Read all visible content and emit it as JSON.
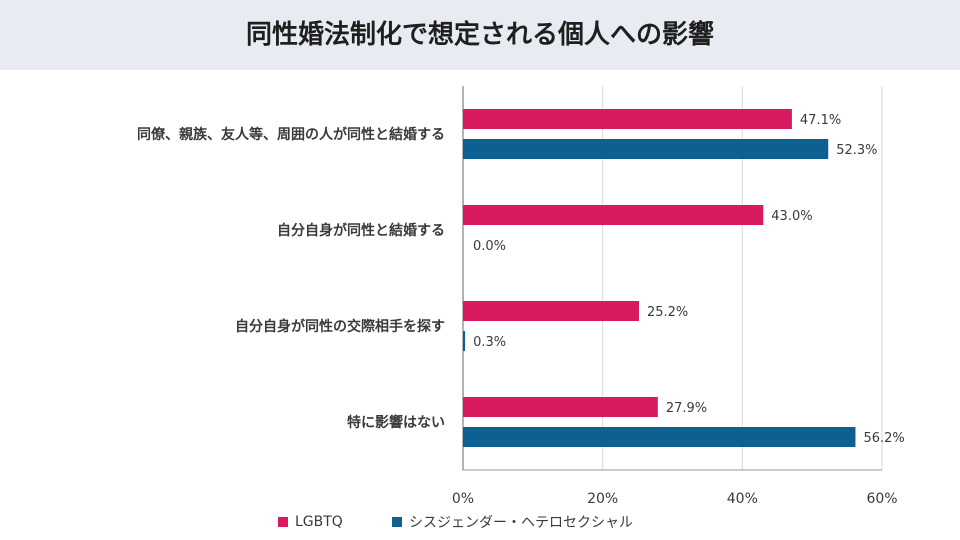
{
  "title": "同性婚法制化で想定される個人への影響",
  "colors": {
    "header_bg": "#e8ebf2",
    "lgbtq": "#d81b60",
    "cis": "#0d6090",
    "axis": "#9a9a9a"
  },
  "chart_data": {
    "type": "bar",
    "orientation": "horizontal",
    "categories": [
      "同僚、親族、友人等、周囲の人が同性と結婚する",
      "自分自身が同性と結婚する",
      "自分自身が同性の交際相手を探す",
      "特に影響はない"
    ],
    "series": [
      {
        "name": "LGBTQ",
        "values": [
          47.1,
          43.0,
          25.2,
          27.9
        ],
        "labels": [
          "47.1%",
          "43.0%",
          "25.2%",
          "27.9%"
        ]
      },
      {
        "name": "シスジェンダー・ヘテロセクシャル",
        "values": [
          52.3,
          0.0,
          0.3,
          56.2
        ],
        "labels": [
          "52.3%",
          "0.0%",
          "0.3%",
          "56.2%"
        ]
      }
    ],
    "xlim": [
      0,
      60
    ],
    "xticks": [
      "0%",
      "20%",
      "40%",
      "60%"
    ],
    "grid": true,
    "legend_position": "bottom"
  }
}
